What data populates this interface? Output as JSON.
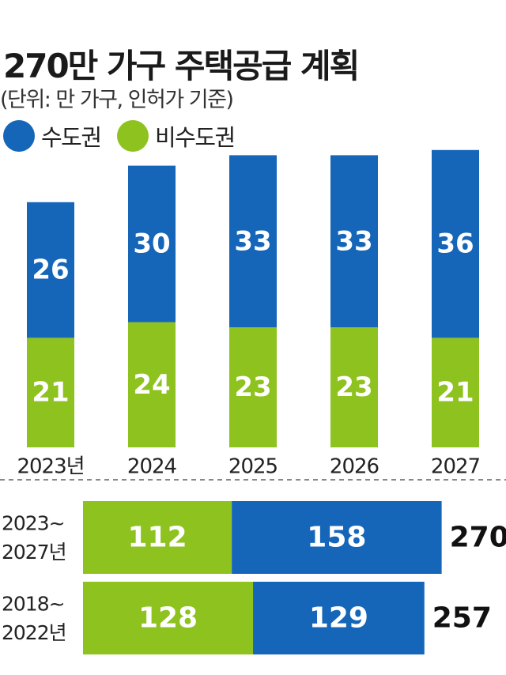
{
  "title": "270만 가구 주택공급 계획",
  "subtitle": "(단위: 만 가구, 인허가 기준)",
  "colors": {
    "capital": "#1565b8",
    "noncapital": "#8dc21f",
    "divider": "#888888"
  },
  "legend": [
    {
      "label": "수도권",
      "color": "#1565b8"
    },
    {
      "label": "비수도권",
      "color": "#8dc21f"
    }
  ],
  "chart_data": [
    {
      "type": "bar",
      "stacked": true,
      "categories": [
        "2023년",
        "2024",
        "2025",
        "2026",
        "2027"
      ],
      "series": [
        {
          "name": "비수도권",
          "values": [
            21,
            24,
            23,
            23,
            21
          ]
        },
        {
          "name": "수도권",
          "values": [
            26,
            30,
            33,
            33,
            36
          ]
        }
      ]
    },
    {
      "type": "bar",
      "orientation": "horizontal",
      "stacked": true,
      "categories": [
        "2023~ 2027년",
        "2018~ 2022년"
      ],
      "series": [
        {
          "name": "비수도권",
          "values": [
            112,
            128
          ]
        },
        {
          "name": "수도권",
          "values": [
            158,
            129
          ]
        }
      ],
      "totals": [
        "270",
        "257"
      ]
    }
  ]
}
